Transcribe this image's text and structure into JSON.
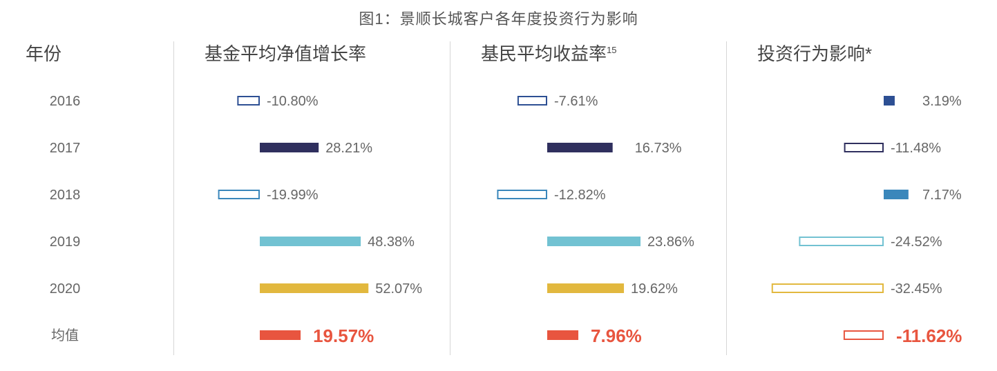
{
  "title": "图1：景顺长城客户各年度投资行为影响",
  "chart_data": {
    "type": "bar",
    "row_header": "年份",
    "categories": [
      "2016",
      "2017",
      "2018",
      "2019",
      "2020",
      "均值"
    ],
    "row_colors": [
      "#2d4f93",
      "#2f2f5e",
      "#3a87bb",
      "#72c2d2",
      "#e2b83e",
      "#e8553f"
    ],
    "series": [
      {
        "name": "基金平均净值增长率",
        "values": [
          -10.8,
          28.21,
          -19.99,
          48.38,
          52.07,
          19.57
        ],
        "labels": [
          "-10.80%",
          "28.21%",
          "-19.99%",
          "48.38%",
          "52.07%",
          "19.57%"
        ]
      },
      {
        "name": "基民平均收益率",
        "superscript": "15",
        "values": [
          -7.61,
          16.73,
          -12.82,
          23.86,
          19.62,
          7.96
        ],
        "labels": [
          "-7.61%",
          "16.73%",
          "-12.82%",
          "23.86%",
          "19.62%",
          "7.96%"
        ]
      },
      {
        "name": "投资行为影响*",
        "values": [
          3.19,
          -11.48,
          7.17,
          -24.52,
          -32.45,
          -11.62
        ],
        "labels": [
          "3.19%",
          "-11.48%",
          "7.17%",
          "-24.52%",
          "-32.45%",
          "-11.62%"
        ]
      }
    ],
    "negative_style": "outline",
    "positive_style": "filled",
    "grid": false
  }
}
